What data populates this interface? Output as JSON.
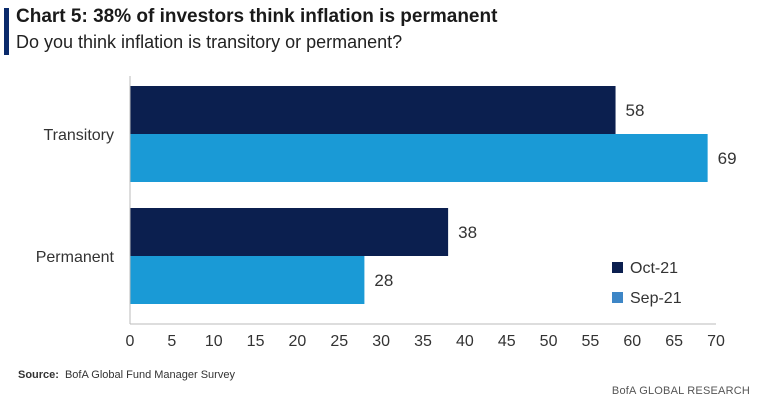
{
  "header": {
    "title": "Chart 5: 38% of investors think inflation is permanent",
    "subtitle": "Do you think inflation is transitory or permanent?"
  },
  "chart_data": {
    "type": "bar",
    "orientation": "horizontal",
    "categories": [
      "Transitory",
      "Permanent"
    ],
    "series": [
      {
        "name": "Oct-21",
        "values": [
          58,
          38
        ],
        "color": "#0b1f4f"
      },
      {
        "name": "Sep-21",
        "values": [
          69,
          28
        ],
        "color": "#1a9ad6"
      }
    ],
    "xlim": [
      0,
      70
    ],
    "xticks": [
      0,
      5,
      10,
      15,
      20,
      25,
      30,
      35,
      40,
      45,
      50,
      55,
      60,
      65,
      70
    ],
    "legend_position": "bottom-right",
    "grid": false
  },
  "source": {
    "label": "Source:",
    "text": "BofA Global Fund Manager Survey"
  },
  "footer": {
    "text": "BofA GLOBAL RESEARCH"
  }
}
